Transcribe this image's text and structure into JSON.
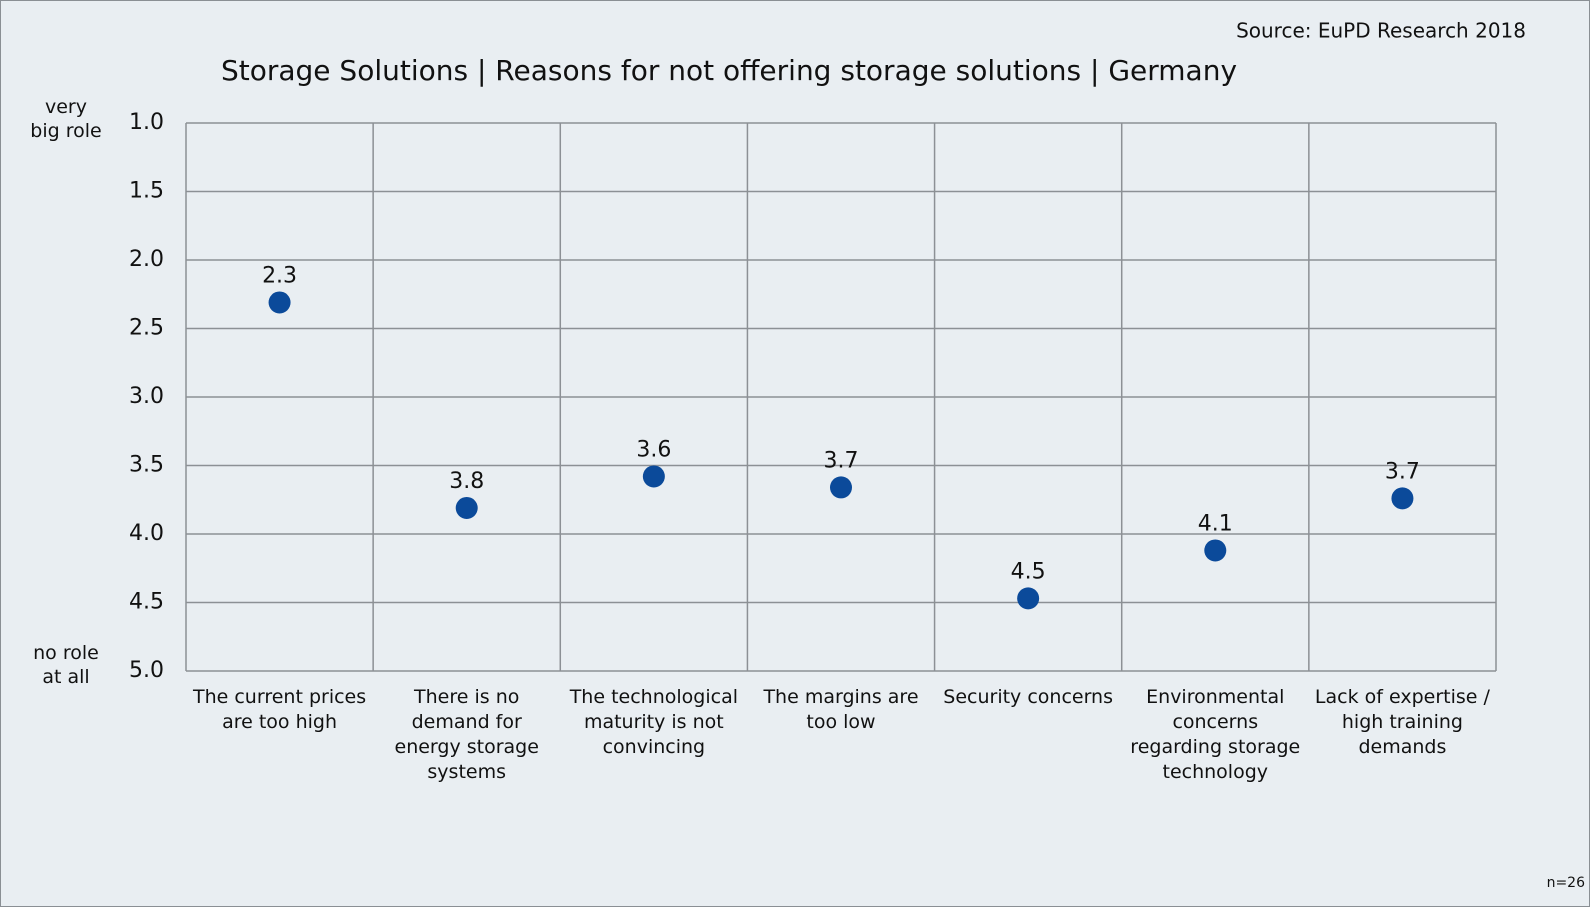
{
  "chart_data": {
    "type": "dot",
    "title": "Storage Solutions | Reasons for not offering storage solutions | Germany",
    "source": "Source: EuPD Research 2018",
    "note": "n=26",
    "y_top_label": "very\nbig role",
    "y_bottom_label": "no role\nat all",
    "categories": [
      "The current prices\nare too high",
      "There is no\ndemand for\nenergy storage\nsystems",
      "The technological\nmaturity is not\nconvincing",
      "The margins are\ntoo low",
      "Security concerns",
      "Environmental\nconcerns\nregarding storage\ntechnology",
      "Lack of expertise /\nhigh training\ndemands"
    ],
    "values": [
      2.31,
      3.81,
      3.58,
      3.66,
      4.47,
      4.12,
      3.74
    ],
    "value_labels": [
      "2.3",
      "3.8",
      "3.6",
      "3.7",
      "4.5",
      "4.1",
      "3.7"
    ],
    "color": "#0b4a9a",
    "ylim": [
      1,
      5
    ],
    "y_inverted": true,
    "yticks": [
      {
        "value": 1,
        "label": "1.0"
      },
      {
        "value": 1.5,
        "label": "1.5"
      },
      {
        "value": 2,
        "label": "2.0"
      },
      {
        "value": 2.5,
        "label": "2.5"
      },
      {
        "value": 3,
        "label": "3.0"
      },
      {
        "value": 3.5,
        "label": "3.5"
      },
      {
        "value": 4,
        "label": "4.0"
      },
      {
        "value": 4.5,
        "label": "4.5"
      },
      {
        "value": 5,
        "label": "5.0"
      }
    ],
    "grid": true
  }
}
